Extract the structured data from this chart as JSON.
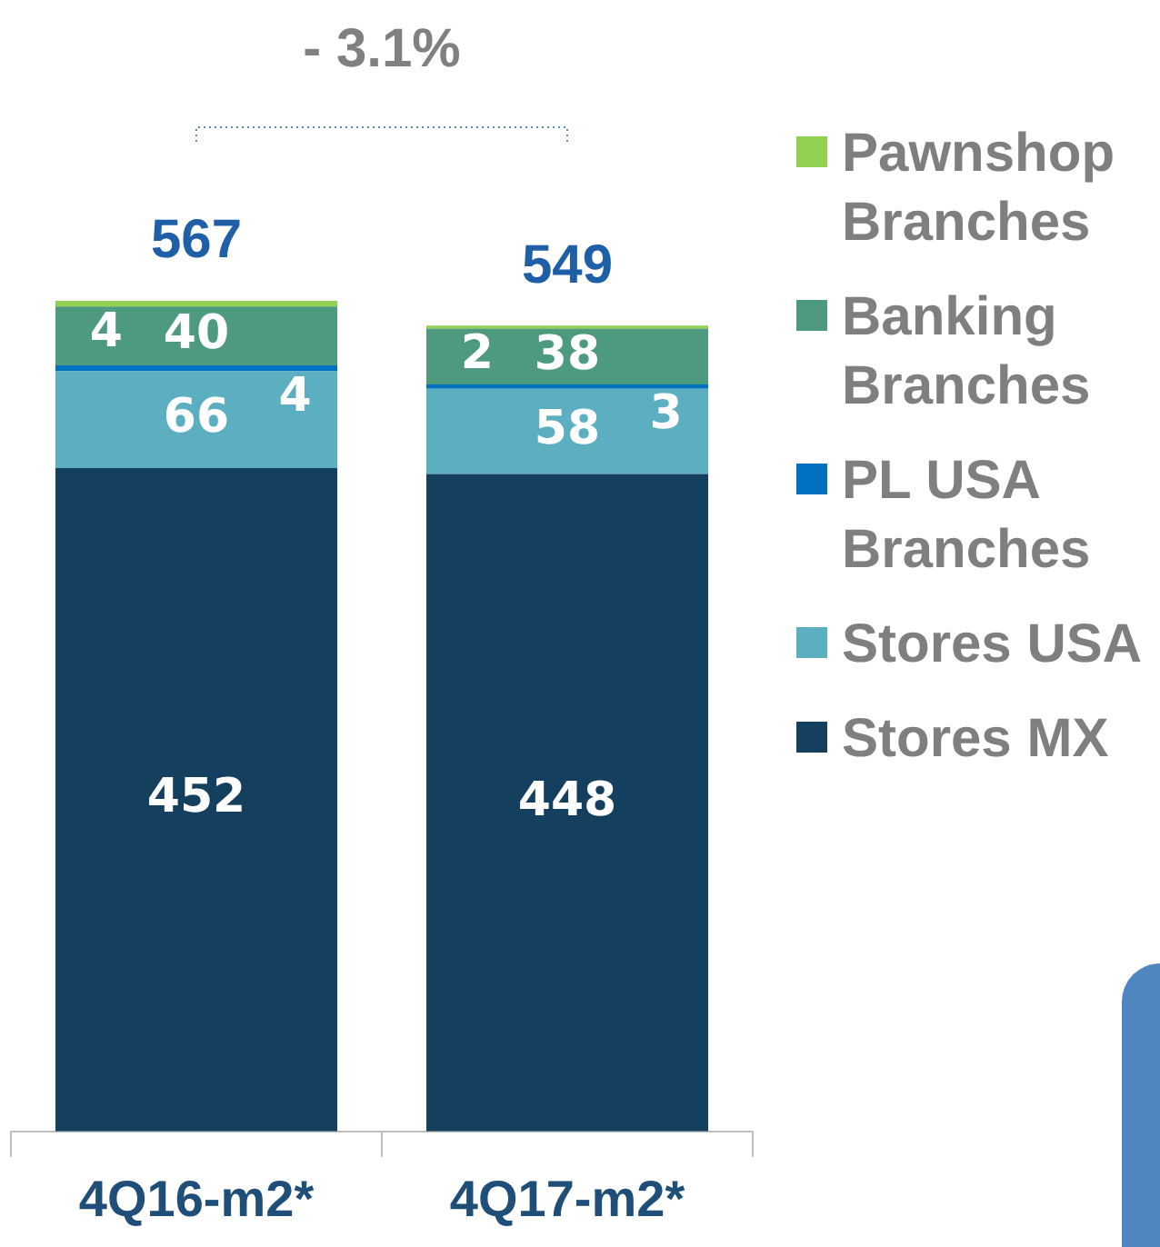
{
  "chart_data": {
    "type": "bar",
    "stacked": true,
    "categories": [
      "4Q16-m2*",
      "4Q17-m2*"
    ],
    "series": [
      {
        "name": "Stores MX",
        "color": "#153f5f",
        "values": [
          452,
          448
        ]
      },
      {
        "name": "Stores USA",
        "color": "#5bafc1",
        "values": [
          66,
          58
        ]
      },
      {
        "name": "PL USA Branches",
        "color": "#0070c0",
        "values": [
          4,
          3
        ]
      },
      {
        "name": "Banking Branches",
        "color": "#4e9a7e",
        "values": [
          40,
          38
        ]
      },
      {
        "name": "Pawnshop Branches",
        "color": "#92d050",
        "values": [
          4,
          2
        ]
      }
    ],
    "data_labels": true,
    "totals": [
      "567",
      "549"
    ],
    "annotations": [
      "- 3.1%"
    ],
    "legend": "right",
    "grid": false
  }
}
